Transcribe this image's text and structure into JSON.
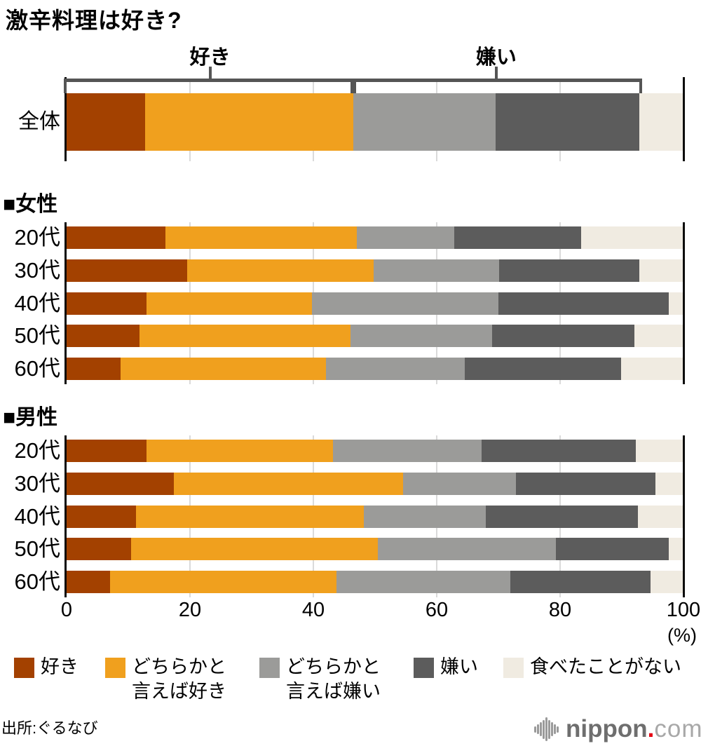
{
  "title": "激辛料理は好き?",
  "chart_data": {
    "type": "bar",
    "orientation": "horizontal-stacked",
    "title": "激辛料理は好き?",
    "unit": "%",
    "unit_label": "(%)",
    "xlim": [
      0,
      100
    ],
    "x_ticks": [
      0,
      20,
      40,
      60,
      80,
      100
    ],
    "grid": true,
    "legend_position": "bottom",
    "legend": [
      {
        "label": "好き",
        "display": "好き",
        "color": "#A34100"
      },
      {
        "label": "どちらかと言えば好き",
        "display": "どちらかと\n言えば好き",
        "color": "#F0A01E"
      },
      {
        "label": "どちらかと言えば嫌い",
        "display": "どちらかと\n言えば嫌い",
        "color": "#9B9B99"
      },
      {
        "label": "嫌い",
        "display": "嫌い",
        "color": "#5C5C5C"
      },
      {
        "label": "食べたことがない",
        "display": "食べたことがない",
        "color": "#F0EBE1"
      }
    ],
    "brackets": [
      {
        "label": "好き",
        "from": 0,
        "to": 46.5
      },
      {
        "label": "嫌い",
        "from": 46.5,
        "to": 92.8
      }
    ],
    "overall": {
      "label": "全体",
      "values": [
        12.7,
        33.8,
        23.1,
        23.2,
        7.2
      ]
    },
    "groups": [
      {
        "header": "■女性",
        "rows": [
          {
            "label": "20代",
            "values": [
              16.0,
              31.0,
              15.8,
              20.6,
              16.6
            ]
          },
          {
            "label": "30代",
            "values": [
              19.5,
              30.3,
              20.3,
              22.7,
              7.2
            ]
          },
          {
            "label": "40代",
            "values": [
              12.9,
              26.9,
              30.2,
              27.6,
              2.4
            ]
          },
          {
            "label": "50代",
            "values": [
              11.8,
              34.2,
              23.0,
              23.0,
              8.0
            ]
          },
          {
            "label": "60代",
            "values": [
              8.8,
              33.3,
              22.5,
              25.3,
              10.1
            ]
          }
        ]
      },
      {
        "header": "■男性",
        "rows": [
          {
            "label": "20代",
            "values": [
              12.9,
              30.3,
              24.1,
              25.0,
              7.7
            ]
          },
          {
            "label": "30代",
            "values": [
              17.4,
              37.2,
              18.2,
              22.7,
              4.5
            ]
          },
          {
            "label": "40代",
            "values": [
              11.3,
              36.9,
              19.8,
              24.6,
              7.4
            ]
          },
          {
            "label": "50代",
            "values": [
              10.4,
              40.1,
              28.8,
              18.3,
              2.4
            ]
          },
          {
            "label": "60代",
            "values": [
              7.0,
              36.8,
              28.1,
              22.8,
              5.3
            ]
          }
        ]
      }
    ]
  },
  "style_colors": {
    "accent_dark_red": "#A34100",
    "accent_orange": "#F0A01E",
    "light_gray": "#9B9B99",
    "dark_gray": "#5C5C5C",
    "cream": "#F0EBE1",
    "gridline": "#DADADA",
    "axis": "#0A0A0A",
    "bracket": "#555555",
    "logo_red": "#E60012"
  },
  "footer": {
    "source": "出所:ぐるなび",
    "logo_name": "nippon",
    "logo_dot": ".",
    "logo_tld": "com"
  }
}
